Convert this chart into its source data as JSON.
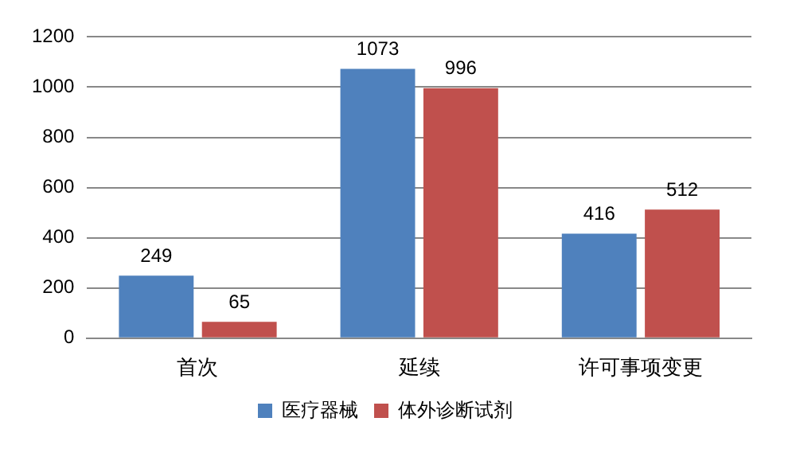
{
  "chart_data": {
    "type": "bar",
    "categories": [
      "首次",
      "延续",
      "许可事项变更"
    ],
    "series": [
      {
        "name": "医疗器械",
        "color": "#4f81bd",
        "values": [
          249,
          1073,
          416
        ]
      },
      {
        "name": "体外诊断试剂",
        "color": "#c0504d",
        "values": [
          65,
          996,
          512
        ]
      }
    ],
    "ylim": [
      0,
      1200
    ],
    "yticks": [
      0,
      200,
      400,
      600,
      800,
      1000,
      1200
    ],
    "grid": "y",
    "legend": "bottom",
    "data_labels": true
  }
}
